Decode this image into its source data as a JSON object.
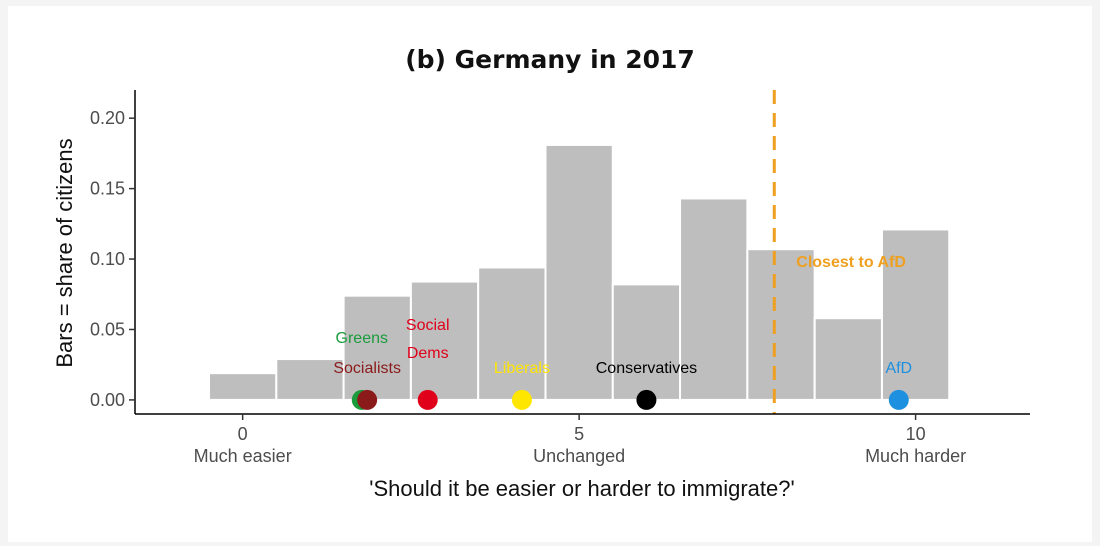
{
  "chart_data": {
    "type": "bar",
    "title": "(b) Germany in 2017",
    "xlabel": "'Should it be easier or harder to immigrate?'",
    "ylabel": "Bars = share of citizens",
    "xlim": [
      -1.6,
      11.7
    ],
    "ylim": [
      -0.01,
      0.22
    ],
    "grid": false,
    "x_ticks": [
      0,
      5,
      10
    ],
    "x_tick_labels": [
      "0",
      "5",
      "10"
    ],
    "x_tick_sublabels": [
      "Much easier",
      "Unchanged",
      "Much harder"
    ],
    "y_ticks": [
      0,
      0.05,
      0.1,
      0.15,
      0.2
    ],
    "y_tick_labels": [
      "0.00",
      "0.05",
      "0.10",
      "0.15",
      "0.20"
    ],
    "categories": [
      "0",
      "1",
      "2",
      "3",
      "4",
      "5",
      "6",
      "7",
      "8",
      "9",
      "10"
    ],
    "values": [
      0.019,
      0.029,
      0.074,
      0.084,
      0.094,
      0.181,
      0.082,
      0.143,
      0.107,
      0.058,
      0.121
    ],
    "bar_color": "#bebebe",
    "reference_line": {
      "x": 7.9,
      "label": "Closest to AfD",
      "color": "#f0a020"
    },
    "parties": [
      {
        "name": "Greens",
        "label": "Greens",
        "x": 1.77,
        "color": "#1a9c3c",
        "label_color": "#1a9c3c"
      },
      {
        "name": "Socialists",
        "label": "Socialists",
        "x": 1.85,
        "color": "#8b1a1a",
        "label_color": "#8b1a1a"
      },
      {
        "name": "Social Dems",
        "label": "Social\nDems",
        "x": 2.75,
        "color": "#e0001a",
        "label_color": "#e0001a"
      },
      {
        "name": "Liberals",
        "label": "Liberals",
        "x": 4.15,
        "color": "#ffe600",
        "label_color": "#ffe600"
      },
      {
        "name": "Conservatives",
        "label": "Conservatives",
        "x": 6.0,
        "color": "#000000",
        "label_color": "#000000"
      },
      {
        "name": "AfD",
        "label": "AfD",
        "x": 9.75,
        "color": "#1e90e0",
        "label_color": "#1e90e0"
      }
    ]
  }
}
